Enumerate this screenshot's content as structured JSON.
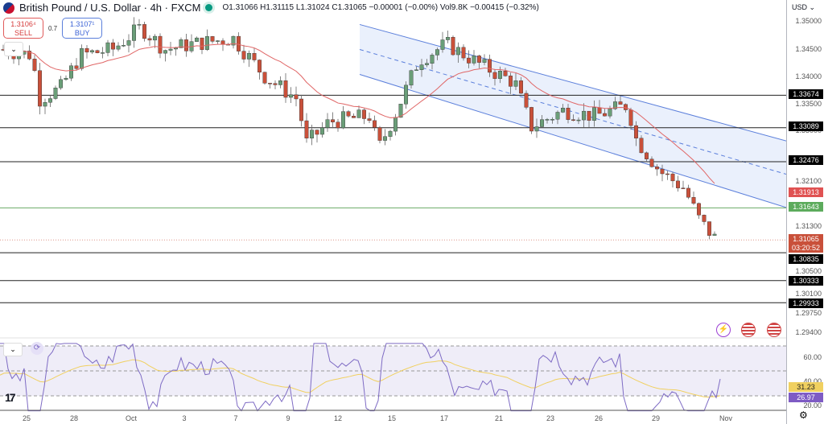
{
  "header": {
    "symbol_title": "British Pound / U.S. Dollar",
    "interval": "4h",
    "exchange": "FXCM",
    "open": "O1.31066",
    "high": "H1.31115",
    "low": "L1.31024",
    "close": "C1.31065",
    "change": "−0.00001 (−0.00%)",
    "volume": "Vol9.8K",
    "change2": "−0.00415 (−0.32%)"
  },
  "trade": {
    "sell_price": "1.3106⁴",
    "sell_label": "SELL",
    "spread": "0.7",
    "buy_price": "1.3107¹",
    "buy_label": "BUY"
  },
  "price_axis": {
    "currency": "USD",
    "ticks": [
      "1.35000",
      "1.34500",
      "1.34000",
      "1.33500",
      "1.33000",
      "1.32100",
      "1.31300",
      "1.30500",
      "1.30100",
      "1.29750",
      "1.29400"
    ],
    "levels": [
      "1.33674",
      "1.33089",
      "1.32476",
      "1.30835",
      "1.30333",
      "1.29933"
    ],
    "ema_label": "1.31913",
    "green_level": "1.31643",
    "last_price": "1.31065",
    "countdown": "03:20:52"
  },
  "rsi_axis": {
    "ticks": [
      "60.00",
      "40.00",
      "20.00"
    ],
    "rsi_ma": "31.23",
    "rsi": "26.97"
  },
  "time_axis": [
    "25",
    "28",
    "Oct",
    "3",
    "7",
    "9",
    "12",
    "15",
    "17",
    "21",
    "23",
    "26",
    "29",
    "Nov"
  ],
  "colors": {
    "up": "#6a9e78",
    "down": "#c9503a",
    "ema": "#e06666",
    "channel": "#5b7fdb",
    "channel_fill": "#e8eefc",
    "rsi": "#7e6bc4",
    "rsi_ma": "#f0d060",
    "green_line": "#6aaa64"
  },
  "chart_data": {
    "type": "candlestick",
    "title": "British Pound / U.S. Dollar · 4h · FXCM",
    "xlabel": "",
    "ylabel": "USD",
    "ylim": [
      1.2925,
      1.3515
    ],
    "x": [
      "25",
      "28",
      "Oct",
      "3",
      "7",
      "9",
      "12",
      "15",
      "17",
      "21",
      "23",
      "26",
      "29",
      "Nov"
    ],
    "horizontal_levels": [
      1.33674,
      1.33089,
      1.32476,
      1.31643,
      1.30835,
      1.30333,
      1.29933
    ],
    "ema_last": 1.31913,
    "last_close": 1.31065,
    "channel": {
      "upper_start": 1.3495,
      "upper_end": 1.3285,
      "lower_start": 1.3405,
      "lower_end": 1.3165
    },
    "rsi": {
      "last": 26.97,
      "ma_last": 31.23,
      "levels": [
        70,
        50,
        30
      ],
      "ylim": [
        15,
        75
      ]
    }
  }
}
